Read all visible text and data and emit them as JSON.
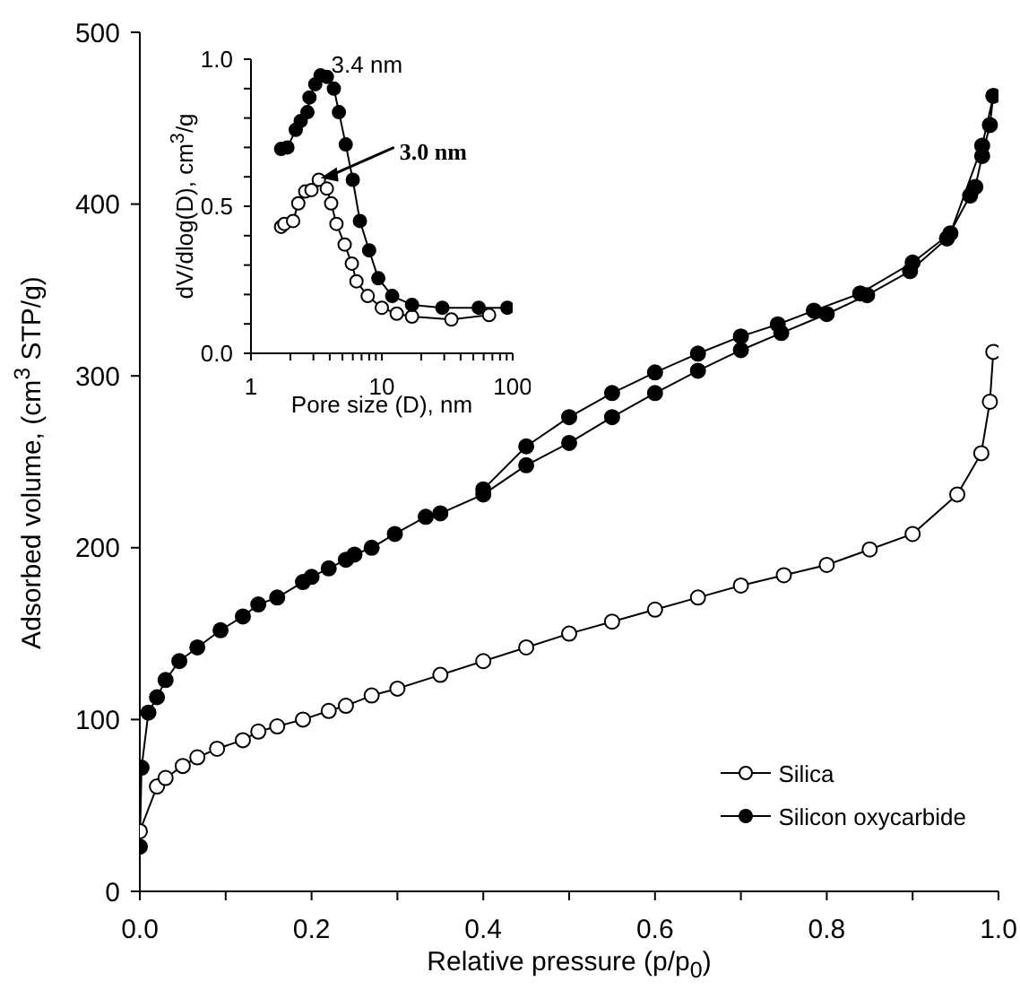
{
  "chart_data": [
    {
      "type": "line",
      "xlabel": "Relative pressure (p/p$_{0}$)",
      "ylabel": "Adsorbed volume, (cm$^{3}$ STP/g)",
      "xlim": [
        0,
        1
      ],
      "ylim": [
        0,
        500
      ],
      "xticks": [
        {
          "value": 0,
          "label": "0.0"
        },
        {
          "value": 0.1,
          "label": null
        },
        0.2,
        {
          "value": 0.3,
          "label": null
        },
        0.4,
        {
          "value": 0.5,
          "label": null
        },
        0.6,
        {
          "value": 0.7,
          "label": null
        },
        0.8,
        {
          "value": 0.9,
          "label": null
        },
        {
          "value": 1,
          "label": "1.0"
        }
      ],
      "yticks": [
        0,
        100,
        200,
        300,
        400,
        500
      ],
      "legend": "bottom right",
      "marker": "circle",
      "line_style": "solid",
      "series": [
        {
          "name": "Silica",
          "color": "#000000",
          "x": [
            0,
            0.02,
            0.03,
            0.05,
            0.067,
            0.09,
            0.12,
            0.138,
            0.16,
            0.19,
            0.22,
            0.24,
            0.27,
            0.3,
            0.35,
            0.4,
            0.45,
            0.5,
            0.55,
            0.6,
            0.65,
            0.7,
            0.75,
            0.8,
            0.85,
            0.9,
            0.952,
            0.98,
            0.99,
            0.994
          ],
          "values": [
            35,
            61,
            66,
            73,
            78,
            83,
            88,
            93,
            96,
            100,
            105,
            108,
            114,
            118,
            126,
            134,
            142,
            150,
            157,
            164,
            171,
            178,
            184,
            190,
            199,
            208,
            231,
            255,
            285,
            314
          ]
        },
        {
          "name": "Silicon oxycarbide",
          "color": "#000000",
          "x": [
            0,
            0.002,
            0.01,
            0.02,
            0.03,
            0.046,
            0.067,
            0.094,
            0.12,
            0.138,
            0.16,
            0.19,
            0.2,
            0.22,
            0.24,
            0.25,
            0.27,
            0.297,
            0.333,
            0.35,
            0.4,
            0.45,
            0.5,
            0.55,
            0.6,
            0.65,
            0.7,
            0.747,
            0.8,
            0.847,
            0.897,
            0.94,
            0.967,
            0.973,
            0.981,
            0.99,
            0.994,
            0.981,
            0.944,
            0.9,
            0.839,
            0.785,
            0.743,
            0.7,
            0.65,
            0.6,
            0.55,
            0.5,
            0.45,
            0.4
          ],
          "values": [
            26,
            72,
            104,
            113,
            123,
            134,
            142,
            152,
            160,
            167,
            171,
            180,
            183,
            188,
            193,
            196,
            200,
            208,
            218,
            220,
            231,
            248,
            261,
            276,
            290,
            303,
            315,
            325,
            336,
            347,
            361,
            380,
            405,
            410,
            428,
            446,
            463,
            434,
            383,
            366,
            348,
            338,
            330,
            323,
            313,
            302,
            290,
            276,
            259,
            234
          ]
        }
      ]
    },
    {
      "type": "line",
      "xlabel": "Pore size (D), nm",
      "ylabel": "dV/dlog(D), cm$^{3}$/g",
      "log": "x",
      "xlim": [
        1,
        100
      ],
      "ylim": [
        0,
        1
      ],
      "xticks": [
        1,
        {
          "value": 2,
          "label": null
        },
        {
          "value": 3,
          "label": null
        },
        {
          "value": 4,
          "label": null
        },
        {
          "value": 5,
          "label": null
        },
        {
          "value": 6,
          "label": null
        },
        {
          "value": 7,
          "label": null
        },
        {
          "value": 8,
          "label": null
        },
        {
          "value": 9,
          "label": null
        },
        10,
        {
          "value": 20,
          "label": null
        },
        {
          "value": 30,
          "label": null
        },
        {
          "value": 40,
          "label": null
        },
        {
          "value": 50,
          "label": null
        },
        {
          "value": 60,
          "label": null
        },
        {
          "value": 70,
          "label": null
        },
        {
          "value": 80,
          "label": null
        },
        {
          "value": 90,
          "label": null
        },
        100
      ],
      "yticks": [
        {
          "value": 0,
          "label": "0.0"
        },
        {
          "value": 0.1,
          "label": null
        },
        {
          "value": 0.2,
          "label": null
        },
        {
          "value": 0.3,
          "label": null
        },
        {
          "value": 0.4,
          "label": null
        },
        0.5,
        {
          "value": 0.6,
          "label": null
        },
        {
          "value": 0.7,
          "label": null
        },
        {
          "value": 0.8,
          "label": null
        },
        {
          "value": 0.9,
          "label": null
        },
        {
          "value": 1,
          "label": "1.0"
        }
      ],
      "marker": "circle",
      "line_style": "solid",
      "annotations": [
        {
          "text": "3.4 nm",
          "x": 3.4,
          "y": 0.945
        },
        {
          "text": "3.0 nm",
          "x": 3.3,
          "y": 0.59
        }
      ],
      "series": [
        {
          "color": "#000000",
          "x": [
            1.7,
            1.8,
            2.1,
            2.3,
            2.6,
            2.9,
            3.3,
            3.8,
            4.1,
            4.5,
            5.2,
            5.9,
            6.4,
            7.8,
            10,
            13,
            17,
            34,
            66
          ],
          "values": [
            0.43,
            0.44,
            0.45,
            0.51,
            0.55,
            0.555,
            0.59,
            0.56,
            0.51,
            0.44,
            0.37,
            0.305,
            0.245,
            0.195,
            0.155,
            0.135,
            0.125,
            0.115,
            0.13
          ]
        },
        {
          "color": "#000000",
          "x": [
            1.7,
            1.9,
            2.2,
            2.4,
            2.7,
            2.8,
            3.1,
            3.4,
            3.8,
            4.3,
            4.7,
            5.3,
            6,
            6.8,
            8,
            9.4,
            12,
            17,
            29,
            55,
            91
          ],
          "values": [
            0.695,
            0.7,
            0.76,
            0.79,
            0.82,
            0.87,
            0.915,
            0.945,
            0.94,
            0.9,
            0.82,
            0.71,
            0.59,
            0.45,
            0.35,
            0.255,
            0.195,
            0.165,
            0.155,
            0.155,
            0.155
          ]
        }
      ]
    }
  ]
}
